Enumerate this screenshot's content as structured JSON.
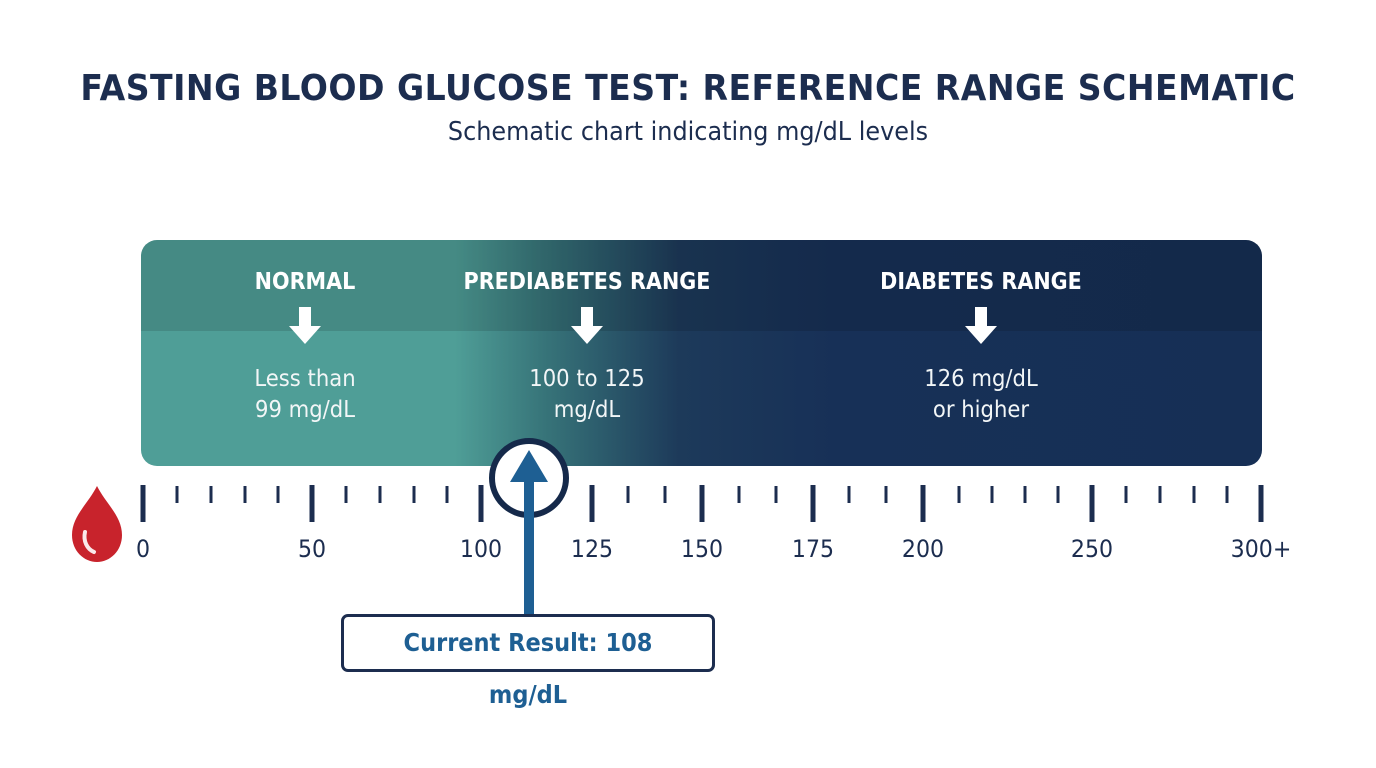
{
  "header": {
    "title": "FASTING BLOOD GLUCOSE TEST: REFERENCE RANGE SCHEMATIC",
    "subtitle": "Schematic chart indicating mg/dL levels"
  },
  "zones": [
    {
      "title": "NORMAL",
      "value_line1": "Less than",
      "value_line2": "99 mg/dL"
    },
    {
      "title": "PREDIABETES RANGE",
      "value_line1": "100 to 125",
      "value_line2": "mg/dL"
    },
    {
      "title": "DIABETES RANGE",
      "value_line1": "126 mg/dL",
      "value_line2": "or higher"
    }
  ],
  "axis": {
    "tick_labels": [
      "0",
      "50",
      "100",
      "125",
      "150",
      "175",
      "200",
      "250",
      "300+"
    ]
  },
  "result": {
    "value": 108,
    "label": "Current Result: 108 mg/dL"
  },
  "colors": {
    "normal": "#4f9e97",
    "diabetes": "#162f55",
    "axis": "#1c2d4f",
    "result_arrow": "#1e5f93",
    "blood_drop": "#c8232c"
  },
  "icons": {
    "drop": "blood-drop-icon",
    "zone_arrow": "down-arrow-icon",
    "result_arrow": "up-arrow-icon"
  }
}
